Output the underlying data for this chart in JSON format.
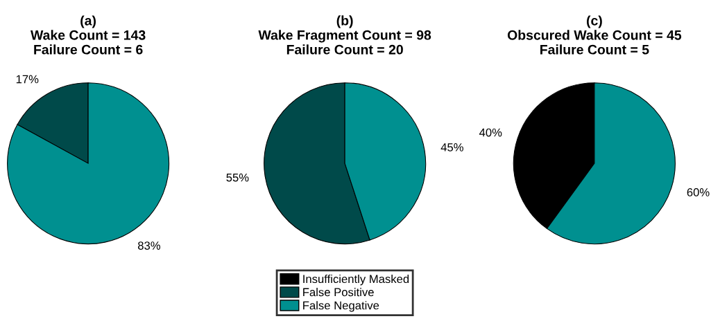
{
  "chart_data": [
    {
      "type": "pie",
      "title": "(a)\nWake Count = 143\nFailure Count = 6",
      "values": [
        17,
        83
      ],
      "colors": [
        "#004a4a",
        "#009090"
      ],
      "value_labels": [
        "17%",
        "83%"
      ]
    },
    {
      "type": "pie",
      "title": "(b)\nWake Fragment Count = 98\nFailure Count = 20",
      "categories": [
        "Insufficiently Masked",
        "False Positive",
        "False Negative"
      ],
      "values": [
        null,
        55,
        45
      ],
      "colors": [
        "#000000",
        "#004a4a",
        "#009090"
      ],
      "value_labels": [
        null,
        "55%",
        "45%"
      ],
      "legend": "bottom"
    },
    {
      "type": "pie",
      "title": "(c)\nObscured Wake Count = 45\nFailure Count = 5",
      "values": [
        40,
        60
      ],
      "colors": [
        "#000000",
        "#009090"
      ],
      "value_labels": [
        "40%",
        "60%"
      ]
    }
  ]
}
